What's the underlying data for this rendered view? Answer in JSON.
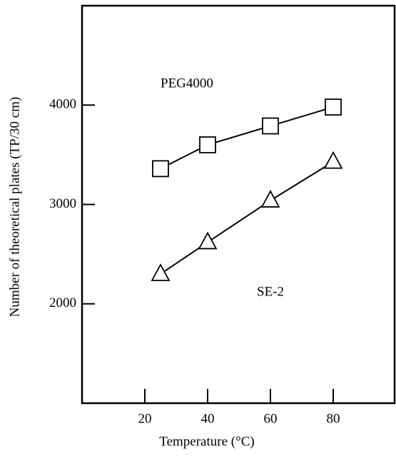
{
  "chart_data": {
    "type": "line",
    "xlabel": "Temperature (°C)",
    "ylabel": "Number of theoretical plates (TP/30 cm)",
    "xlim": [
      0,
      100
    ],
    "xticks": [
      20,
      40,
      60,
      80
    ],
    "ylim": [
      1000,
      5000
    ],
    "yticks": [
      2000,
      3000,
      4000
    ],
    "series": [
      {
        "name": "PEG4000",
        "color": "#000000",
        "marker": "square",
        "x": [
          25,
          40,
          60,
          80
        ],
        "values": [
          3360,
          3600,
          3790,
          3980
        ]
      },
      {
        "name": "SE-2",
        "color": "#000000",
        "marker": "triangle",
        "x": [
          25,
          40,
          60,
          80
        ],
        "values": [
          2300,
          2620,
          3040,
          3430
        ]
      }
    ]
  }
}
